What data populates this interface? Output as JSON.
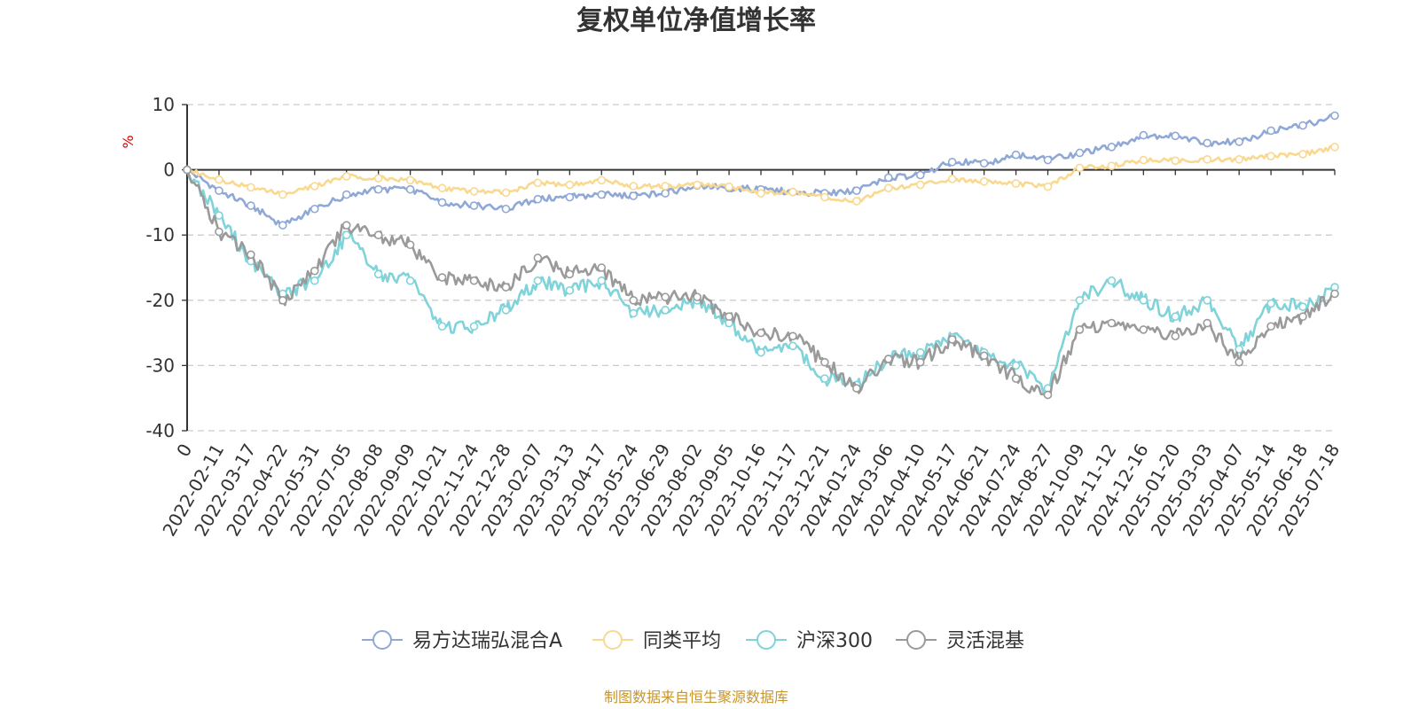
{
  "chart_data": {
    "type": "line",
    "title": "复权单位净值增长率",
    "ylabel": "%",
    "ylim": [
      -40,
      10
    ],
    "yticks": [
      10,
      0,
      -10,
      -20,
      -30,
      -40
    ],
    "x_labels": [
      "0",
      "2022-02-11",
      "2022-03-17",
      "2022-04-22",
      "2022-05-31",
      "2022-07-05",
      "2022-08-08",
      "2022-09-09",
      "2022-10-21",
      "2022-11-24",
      "2022-12-28",
      "2023-02-07",
      "2023-03-13",
      "2023-04-17",
      "2023-05-24",
      "2023-06-29",
      "2023-08-02",
      "2023-09-05",
      "2023-10-16",
      "2023-11-17",
      "2023-12-21",
      "2024-01-24",
      "2024-03-06",
      "2024-04-10",
      "2024-05-17",
      "2024-06-21",
      "2024-07-24",
      "2024-08-27",
      "2024-10-09",
      "2024-11-12",
      "2024-12-16",
      "2025-01-20",
      "2025-03-03",
      "2025-04-07",
      "2025-05-14",
      "2025-06-18",
      "2025-07-18"
    ],
    "grid": true,
    "legend_position": "bottom",
    "series": [
      {
        "name": "易方达瑞弘混合A",
        "color": "#8fa8d6",
        "values": [
          0,
          -3.2,
          -5.5,
          -8.5,
          -6,
          -3.8,
          -3,
          -3,
          -5,
          -5.5,
          -6,
          -4.5,
          -4.2,
          -3.8,
          -4,
          -3.6,
          -2.4,
          -2.8,
          -3,
          -3.4,
          -3.6,
          -3.2,
          -1.2,
          -0.8,
          1.2,
          1,
          2.3,
          1.5,
          2.6,
          3.5,
          5.3,
          5.2,
          4.1,
          4.3,
          6,
          6.8,
          8.3
        ]
      },
      {
        "name": "同类平均",
        "color": "#f9d890",
        "values": [
          0,
          -1.5,
          -2.7,
          -3.8,
          -2.5,
          -1,
          -1.3,
          -1.6,
          -2.8,
          -3.3,
          -3.5,
          -2,
          -2.3,
          -1.6,
          -2.5,
          -2.5,
          -2.3,
          -2.6,
          -3.6,
          -3.4,
          -4.2,
          -4.8,
          -2.8,
          -2.3,
          -1.4,
          -1.8,
          -2.1,
          -2.6,
          0.3,
          0.6,
          1.5,
          1.4,
          1.6,
          1.6,
          2.1,
          2.4,
          3.5
        ]
      },
      {
        "name": "沪深300",
        "color": "#7fd3d9",
        "values": [
          0,
          -7,
          -14,
          -19,
          -17,
          -10,
          -16,
          -17,
          -24,
          -24,
          -21.5,
          -17,
          -18.5,
          -17,
          -22,
          -21.5,
          -20,
          -23.5,
          -28,
          -27,
          -32,
          -33,
          -29,
          -28,
          -25.7,
          -28,
          -30,
          -33.5,
          -20,
          -17,
          -20,
          -22.5,
          -20,
          -27.5,
          -20.5,
          -21,
          -18
        ]
      },
      {
        "name": "灵活混基",
        "color": "#9a9a9a",
        "values": [
          0,
          -9.5,
          -13,
          -20,
          -15.5,
          -8.5,
          -10,
          -11.5,
          -16.5,
          -17,
          -18,
          -13.5,
          -16,
          -15,
          -20,
          -19.5,
          -19.5,
          -22.5,
          -25,
          -25.5,
          -29.5,
          -33.5,
          -29,
          -29.5,
          -26,
          -28.5,
          -32,
          -34.5,
          -24.5,
          -23.5,
          -24.5,
          -25.5,
          -23.5,
          -29.5,
          -24,
          -22.5,
          -19
        ]
      }
    ]
  },
  "source_note": "制图数据来自恒生聚源数据库"
}
